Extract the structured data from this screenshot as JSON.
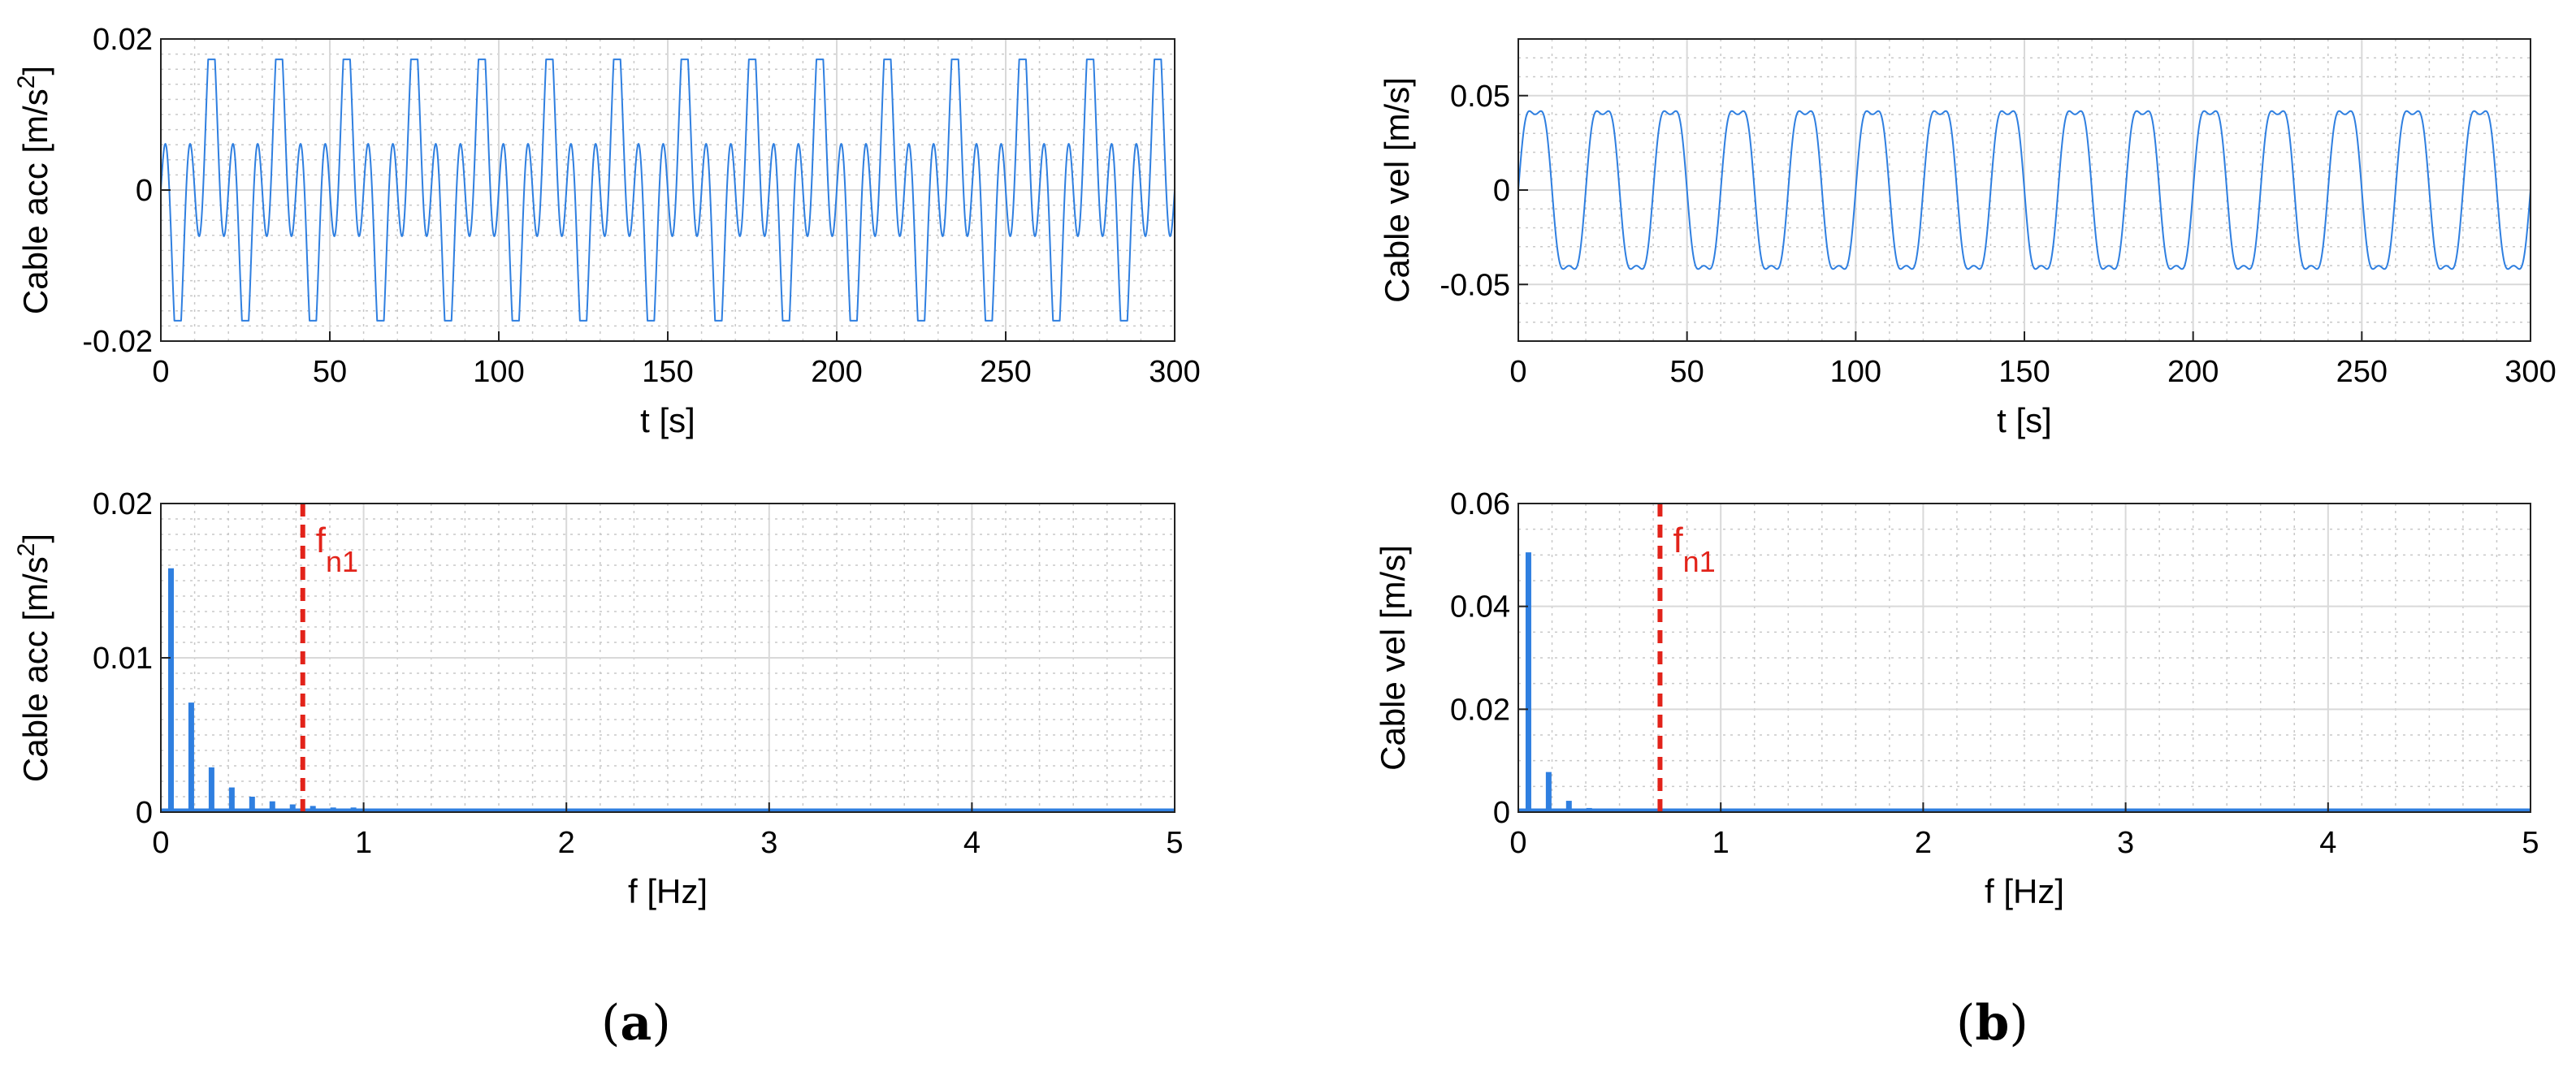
{
  "figure": {
    "panel_labels": [
      {
        "open": "(",
        "letter": "a",
        "close": ")"
      },
      {
        "open": "(",
        "letter": "b",
        "close": ")"
      }
    ]
  },
  "colors": {
    "series": "#2f7fe0",
    "marker": "#e2231a",
    "grid": "#d9d9d9",
    "minor_grid": "#c8c8c8",
    "axis": "#222222"
  },
  "chart_data": [
    {
      "id": "a-top",
      "type": "line",
      "xlabel": "t [s]",
      "ylabel": "Cable acc [m/s",
      "ylabel_sup": "2",
      "ylabel_end": "]",
      "xlim": [
        0,
        300
      ],
      "ylim": [
        -0.02,
        0.02
      ],
      "xticks": [
        0,
        50,
        100,
        150,
        200,
        250,
        300
      ],
      "xtick_labels": [
        "0",
        "50",
        "100",
        "150",
        "200",
        "250",
        "300"
      ],
      "yticks": [
        -0.02,
        0,
        0.02
      ],
      "ytick_labels": [
        "-0.02",
        "0",
        "0.02"
      ],
      "grid": true,
      "minor_grid_y": true,
      "series": [
        {
          "function": "0.0173*sin(2*pi*0.05*t)*cos(2*pi*0.1*t)/0.77",
          "amplitude": 0.0173,
          "period_s": 20
        }
      ]
    },
    {
      "id": "b-top",
      "type": "line",
      "xlabel": "t [s]",
      "ylabel": "Cable vel [m/s]",
      "xlim": [
        0,
        300
      ],
      "ylim": [
        -0.08,
        0.08
      ],
      "xticks": [
        0,
        50,
        100,
        150,
        200,
        250,
        300
      ],
      "xtick_labels": [
        "0",
        "50",
        "100",
        "150",
        "200",
        "250",
        "300"
      ],
      "yticks": [
        -0.05,
        0,
        0.05
      ],
      "ytick_labels": [
        "-0.05",
        "0",
        "0.05"
      ],
      "grid": true,
      "minor_grid_y": true,
      "series": [
        {
          "function": "sin(2*pi*0.05*t) + 0.17*sin(6*pi*0.05*t)",
          "amplitude": 0.0565,
          "period_s": 20
        }
      ]
    },
    {
      "id": "a-bottom",
      "type": "bar",
      "xlabel": "f [Hz]",
      "ylabel": "Cable acc [m/s",
      "ylabel_sup": "2",
      "ylabel_end": "]",
      "xlim": [
        0,
        5
      ],
      "ylim": [
        0,
        0.02
      ],
      "xticks": [
        0,
        1,
        2,
        3,
        4,
        5
      ],
      "xtick_labels": [
        "0",
        "1",
        "2",
        "3",
        "4",
        "5"
      ],
      "yticks": [
        0,
        0.01,
        0.02
      ],
      "ytick_labels": [
        "0",
        "0.01",
        "0.02"
      ],
      "grid": true,
      "minor_grid_y": true,
      "x": [
        0.05,
        0.15,
        0.25,
        0.35,
        0.45,
        0.55,
        0.65,
        0.75,
        0.85,
        0.95,
        1.05,
        1.15,
        1.25,
        1.35,
        1.45,
        1.55,
        1.65,
        1.75,
        1.85,
        1.95,
        2.05,
        2.15,
        2.25,
        2.35
      ],
      "values": [
        0.0158,
        0.0071,
        0.0029,
        0.0016,
        0.001,
        0.0007,
        0.0005,
        0.0004,
        0.0003,
        0.0003,
        0.0002,
        0.0002,
        0.0002,
        0.0002,
        0.0001,
        0.0001,
        0.0001,
        0.0001,
        0.0001,
        0.0001,
        0.0001,
        0.0001,
        0.0001,
        0.0001
      ],
      "marker": {
        "x": 0.7,
        "label": "f",
        "sub": "n1"
      }
    },
    {
      "id": "b-bottom",
      "type": "bar",
      "xlabel": "f [Hz]",
      "ylabel": "Cable vel [m/s]",
      "xlim": [
        0,
        5
      ],
      "ylim": [
        0,
        0.06
      ],
      "xticks": [
        0,
        1,
        2,
        3,
        4,
        5
      ],
      "xtick_labels": [
        "0",
        "1",
        "2",
        "3",
        "4",
        "5"
      ],
      "yticks": [
        0,
        0.02,
        0.04,
        0.06
      ],
      "ytick_labels": [
        "0",
        "0.02",
        "0.04",
        "0.06"
      ],
      "grid": true,
      "minor_grid_y": true,
      "x": [
        0.05,
        0.15,
        0.25,
        0.35,
        0.45,
        0.55,
        0.65,
        0.75,
        0.85,
        0.95
      ],
      "values": [
        0.0505,
        0.0078,
        0.0022,
        0.0008,
        0.0005,
        0.0003,
        0.0002,
        0.0001,
        0.0001,
        0.0001
      ],
      "marker": {
        "x": 0.7,
        "label": "f",
        "sub": "n1"
      }
    }
  ]
}
